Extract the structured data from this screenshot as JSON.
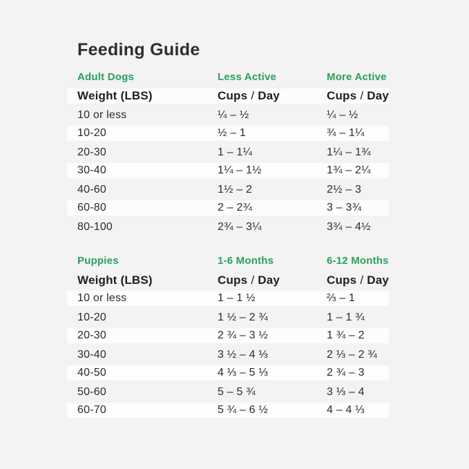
{
  "title": "Feeding Guide",
  "colors": {
    "accent_green": "#2BA05A",
    "background": "#F2F3F2",
    "stripe_white": "#FDFDFD",
    "text_dark": "#2A2A2A"
  },
  "units": {
    "cups": "Cups",
    "slash": "/",
    "day": "Day"
  },
  "adult_table": {
    "section_label": "Adult Dogs",
    "col2_header": "Less Active",
    "col3_header": "More Active",
    "weight_header": "Weight (LBS)",
    "rows": [
      {
        "weight": "10 or less",
        "less_active": "¼ – ½",
        "more_active": "¼ – ½"
      },
      {
        "weight": "10-20",
        "less_active": "½ – 1",
        "more_active": "¾ – 1¼"
      },
      {
        "weight": "20-30",
        "less_active": "1 – 1¼",
        "more_active": "1¼ – 1¾"
      },
      {
        "weight": "30-40",
        "less_active": "1¼ – 1½",
        "more_active": "1¾ – 2¼"
      },
      {
        "weight": "40-60",
        "less_active": "1½ – 2",
        "more_active": "2½ – 3"
      },
      {
        "weight": "60-80",
        "less_active": "2 – 2¾",
        "more_active": "3 – 3¾"
      },
      {
        "weight": "80-100",
        "less_active": "2¾ – 3¼",
        "more_active": "3¾ – 4½"
      }
    ]
  },
  "puppy_table": {
    "section_label": "Puppies",
    "col2_header": "1-6 Months",
    "col3_header": "6-12 Months",
    "weight_header": "Weight (LBS)",
    "rows": [
      {
        "weight": "10 or less",
        "months_1_6": "1 – 1 ½",
        "months_6_12": "⅔ – 1"
      },
      {
        "weight": "10-20",
        "months_1_6": "1 ½ – 2 ¾",
        "months_6_12": "1 – 1 ¾"
      },
      {
        "weight": "20-30",
        "months_1_6": "2 ¾ – 3 ½",
        "months_6_12": "1 ¾ – 2"
      },
      {
        "weight": "30-40",
        "months_1_6": "3 ½ – 4 ⅓",
        "months_6_12": "2 ⅓ – 2 ¾"
      },
      {
        "weight": "40-50",
        "months_1_6": "4 ⅓ – 5 ⅓",
        "months_6_12": "2 ¾ – 3"
      },
      {
        "weight": "50-60",
        "months_1_6": "5 – 5 ¾",
        "months_6_12": "3 ⅓ – 4"
      },
      {
        "weight": "60-70",
        "months_1_6": "5 ¾ – 6 ½",
        "months_6_12": "4 – 4 ⅓"
      }
    ]
  }
}
